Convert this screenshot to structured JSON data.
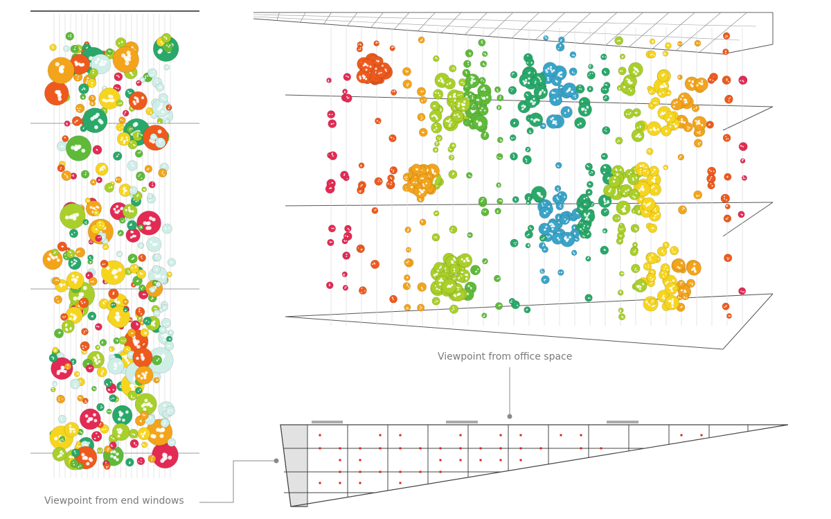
{
  "labels": {
    "office_view": "Viewpoint from office space",
    "end_view": "Viewpoint from end windows"
  },
  "colors": {
    "line": "#555555",
    "leader": "#8a8a8a",
    "marker": "#e02020",
    "wedge_fill": "#e2e2e2",
    "strand": "#dcdcdc"
  },
  "palette": [
    "#e32a53",
    "#ee5a1e",
    "#f3a41b",
    "#f6d51f",
    "#a9cf2a",
    "#5fba3a",
    "#29a86a",
    "#26a0a0",
    "#3aa4c8"
  ],
  "notes": {
    "elements": "Suspended polyhedral ornaments on vertical strands inside a glazed volume; colors grade red → orange → yellow → green → teal across the space. Plan section below shows strand points (red) in a tapering structural grid."
  }
}
